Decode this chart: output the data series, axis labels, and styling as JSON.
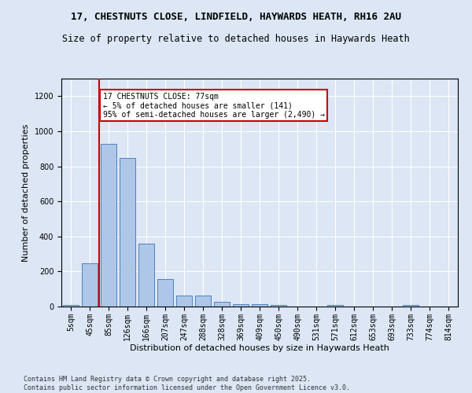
{
  "title_line1": "17, CHESTNUTS CLOSE, LINDFIELD, HAYWARDS HEATH, RH16 2AU",
  "title_line2": "Size of property relative to detached houses in Haywards Heath",
  "xlabel": "Distribution of detached houses by size in Haywards Heath",
  "ylabel": "Number of detached properties",
  "categories": [
    "5sqm",
    "45sqm",
    "85sqm",
    "126sqm",
    "166sqm",
    "207sqm",
    "247sqm",
    "288sqm",
    "328sqm",
    "369sqm",
    "409sqm",
    "450sqm",
    "490sqm",
    "531sqm",
    "571sqm",
    "612sqm",
    "653sqm",
    "693sqm",
    "733sqm",
    "774sqm",
    "814sqm"
  ],
  "values": [
    8,
    248,
    930,
    848,
    358,
    158,
    63,
    63,
    28,
    15,
    12,
    10,
    0,
    0,
    10,
    0,
    0,
    0,
    8,
    0,
    0
  ],
  "bar_color": "#aec6e8",
  "bar_edge_color": "#4f81bd",
  "ylim": [
    0,
    1300
  ],
  "yticks": [
    0,
    200,
    400,
    600,
    800,
    1000,
    1200
  ],
  "vline_x": 1.5,
  "vline_color": "#cc0000",
  "annotation_text": "17 CHESTNUTS CLOSE: 77sqm\n← 5% of detached houses are smaller (141)\n95% of semi-detached houses are larger (2,490) →",
  "annotation_box_color": "#cc0000",
  "annotation_box_facecolor": "#ffffff",
  "footnote": "Contains HM Land Registry data © Crown copyright and database right 2025.\nContains public sector information licensed under the Open Government Licence v3.0.",
  "bg_color": "#dce6f5",
  "grid_color": "#ffffff",
  "title_fontsize": 9,
  "subtitle_fontsize": 8.5,
  "tick_fontsize": 7,
  "label_fontsize": 8,
  "footnote_fontsize": 6,
  "annotation_fontsize": 7
}
